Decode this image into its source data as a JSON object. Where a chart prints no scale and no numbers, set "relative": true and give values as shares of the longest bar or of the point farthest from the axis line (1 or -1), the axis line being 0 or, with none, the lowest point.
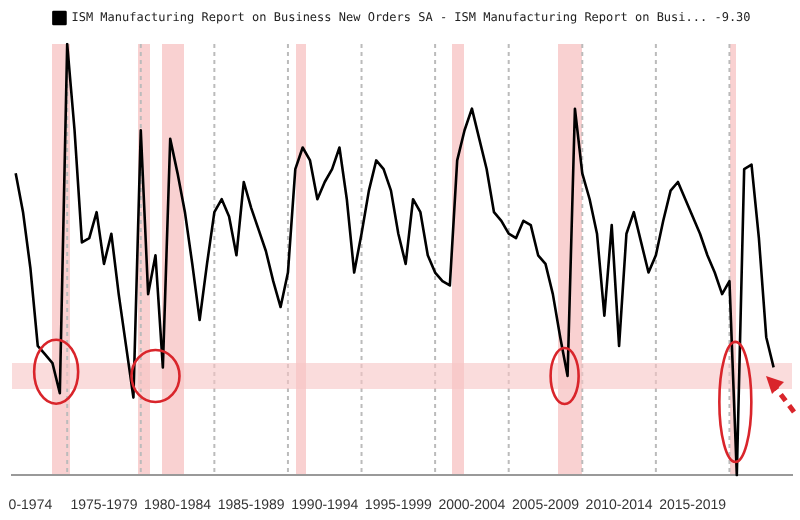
{
  "chart_data": {
    "type": "line",
    "relative": true,
    "legend": "top",
    "grid": "x",
    "categories": [
      null,
      null,
      "0-1974",
      null,
      null,
      null,
      null,
      null,
      null,
      null,
      null,
      null,
      "1975-1979",
      null,
      null,
      null,
      null,
      null,
      null,
      null,
      null,
      null,
      "1980-1984",
      null,
      null,
      null,
      null,
      null,
      null,
      null,
      null,
      null,
      "1985-1989",
      null,
      null,
      null,
      null,
      null,
      null,
      null,
      null,
      null,
      "1990-1994",
      null,
      null,
      null,
      null,
      null,
      null,
      null,
      null,
      null,
      "1995-1999",
      null,
      null,
      null,
      null,
      null,
      null,
      null,
      null,
      null,
      "2000-2004",
      null,
      null,
      null,
      null,
      null,
      null,
      null,
      null,
      null,
      "2005-2009",
      null,
      null,
      null,
      null,
      null,
      null,
      null,
      null,
      null,
      "2010-2014",
      null,
      null,
      null,
      null,
      null,
      null,
      null,
      null,
      null,
      "2015-2019",
      null,
      null,
      null,
      null,
      null,
      null,
      null,
      null,
      null,
      null,
      null,
      null,
      null
    ],
    "bands": [
      {
        "axis": "y",
        "from": 0.2,
        "to": 0.26,
        "color": "#f7c4c4"
      }
    ],
    "series": [
      {
        "name": "ISM Manufacturing Report on Business New Orders SA - ISM Manufacturing Report on Busi... -9.30",
        "color": "#000000",
        "values": [
          0.7,
          0.61,
          0.48,
          0.3,
          0.28,
          0.26,
          0.19,
          1.0,
          0.8,
          0.54,
          0.55,
          0.61,
          0.49,
          0.56,
          0.42,
          0.3,
          0.18,
          0.8,
          0.42,
          0.51,
          0.25,
          0.78,
          0.7,
          0.61,
          0.49,
          0.36,
          0.49,
          0.61,
          0.64,
          0.6,
          0.51,
          0.68,
          0.62,
          0.57,
          0.52,
          0.45,
          0.39,
          0.47,
          0.71,
          0.76,
          0.73,
          0.64,
          0.68,
          0.71,
          0.76,
          0.64,
          0.47,
          0.56,
          0.66,
          0.73,
          0.71,
          0.66,
          0.56,
          0.49,
          0.64,
          0.61,
          0.51,
          0.47,
          0.45,
          0.44,
          0.73,
          0.8,
          0.85,
          0.78,
          0.71,
          0.61,
          0.59,
          0.56,
          0.55,
          0.59,
          0.58,
          0.51,
          0.49,
          0.42,
          0.32,
          0.23,
          0.85,
          0.7,
          0.64,
          0.56,
          0.37,
          0.58,
          0.3,
          0.56,
          0.61,
          0.54,
          0.47,
          0.51,
          0.59,
          0.66,
          0.68,
          0.64,
          0.6,
          0.56,
          0.51,
          0.47,
          0.42,
          0.45,
          0,
          0.71,
          0.72,
          0.55,
          0.32,
          0.25,
          null,
          null
        ]
      }
    ]
  }
}
